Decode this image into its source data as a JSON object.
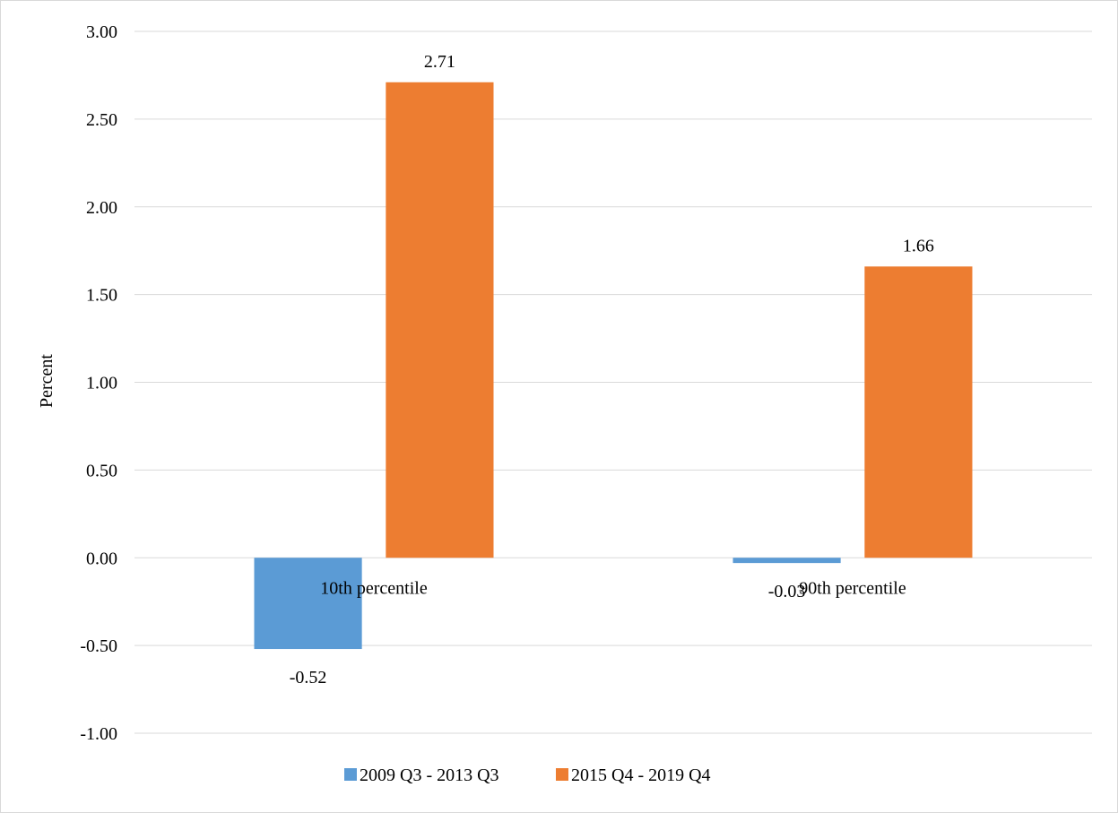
{
  "chart_data": {
    "type": "bar",
    "ylabel": "Percent",
    "xlabel": "",
    "ylim": [
      -1.0,
      3.0
    ],
    "y_ticks": [
      3.0,
      2.5,
      2.0,
      1.5,
      1.0,
      0.5,
      0.0,
      -0.5,
      -1.0
    ],
    "y_tick_labels": [
      "3.00",
      "2.50",
      "2.00",
      "1.50",
      "1.00",
      "0.50",
      "0.00",
      "-0.50",
      "-1.00"
    ],
    "grid": "horizontal",
    "legend_position": "bottom",
    "categories": [
      "10th percentile",
      "90th percentile"
    ],
    "series": [
      {
        "name": "2009 Q3 - 2013 Q3",
        "color": "#5b9bd5",
        "values": [
          -0.52,
          -0.03
        ],
        "labels": [
          "-0.52",
          "-0.03"
        ]
      },
      {
        "name": "2015 Q4 - 2019 Q4",
        "color": "#ed7d31",
        "values": [
          2.71,
          1.66
        ],
        "labels": [
          "2.71",
          "1.66"
        ]
      }
    ]
  }
}
